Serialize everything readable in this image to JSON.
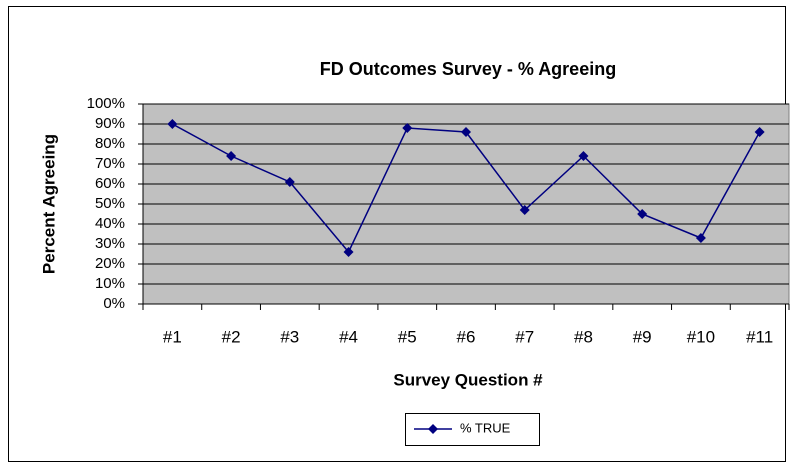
{
  "chart_data": {
    "type": "line",
    "title": "FD Outcomes Survey - % Agreeing",
    "x_label": "Survey Question #",
    "y_label": "Percent Agreeing",
    "categories": [
      "#1",
      "#2",
      "#3",
      "#4",
      "#5",
      "#6",
      "#7",
      "#8",
      "#9",
      "#10",
      "#11"
    ],
    "series": [
      {
        "name": "% TRUE",
        "color": "#000080",
        "values": [
          90,
          74,
          61,
          26,
          88,
          86,
          47,
          74,
          45,
          33,
          86
        ]
      }
    ],
    "ylim": [
      0,
      100
    ],
    "yticks": [
      {
        "value": 0,
        "label": "0%"
      },
      {
        "value": 10,
        "label": "10%"
      },
      {
        "value": 20,
        "label": "20%"
      },
      {
        "value": 30,
        "label": "30%"
      },
      {
        "value": 40,
        "label": "40%"
      },
      {
        "value": 50,
        "label": "50%"
      },
      {
        "value": 60,
        "label": "60%"
      },
      {
        "value": 70,
        "label": "70%"
      },
      {
        "value": 80,
        "label": "80%"
      },
      {
        "value": 90,
        "label": "90%"
      },
      {
        "value": 100,
        "label": "100%"
      }
    ],
    "grid": true,
    "legend": "bottom"
  }
}
